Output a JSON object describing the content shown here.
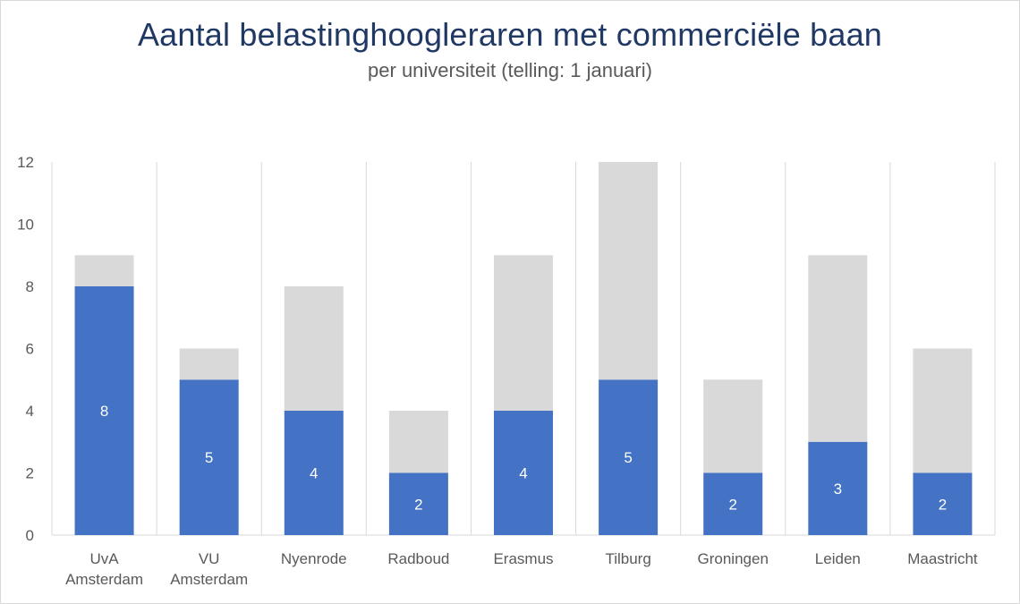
{
  "title": "Aantal belastinghoogleraren met commerciële baan",
  "subtitle": "per universiteit (telling: 1 januari)",
  "chart_data": {
    "type": "bar",
    "stacked": true,
    "categories": [
      [
        "UvA",
        "Amsterdam"
      ],
      [
        "VU",
        "Amsterdam"
      ],
      [
        "Nyenrode"
      ],
      [
        "Radboud"
      ],
      [
        "Erasmus"
      ],
      [
        "Tilburg"
      ],
      [
        "Groningen"
      ],
      [
        "Leiden"
      ],
      [
        "Maastricht"
      ]
    ],
    "series": [
      {
        "values": [
          8,
          5,
          4,
          2,
          4,
          5,
          2,
          3,
          2
        ],
        "color": "#4472c4",
        "show_labels": true
      },
      {
        "values": [
          1,
          1,
          4,
          2,
          5,
          7,
          3,
          6,
          4
        ],
        "color": "#d9d9d9",
        "show_labels": false
      }
    ],
    "ylim": [
      0,
      12
    ],
    "yticks": [
      0,
      2,
      4,
      6,
      8,
      10,
      12
    ],
    "grid": "vertical separators between categories",
    "legend": "none"
  }
}
